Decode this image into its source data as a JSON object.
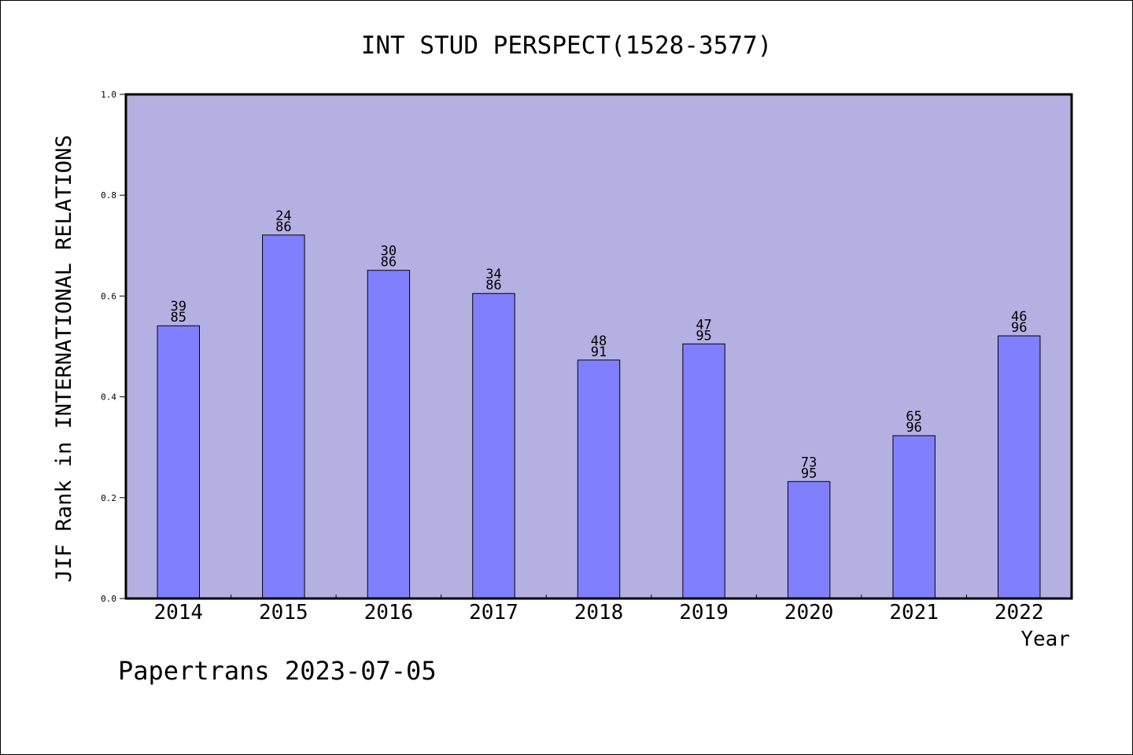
{
  "chart_data": {
    "type": "bar",
    "title": "INT STUD PERSPECT(1528-3577)",
    "xlabel": "Year",
    "ylabel": "JIF Rank in INTERNATIONAL RELATIONS",
    "ylim": [
      0,
      1.0
    ],
    "yticks": [
      "0.0",
      "0.2",
      "0.4",
      "0.6",
      "0.8",
      "1.0"
    ],
    "categories": [
      "2014",
      "2015",
      "2016",
      "2017",
      "2018",
      "2019",
      "2020",
      "2021",
      "2022"
    ],
    "values": [
      0.541,
      0.721,
      0.651,
      0.605,
      0.473,
      0.505,
      0.232,
      0.323,
      0.521
    ],
    "bar_labels": [
      [
        "39",
        "85"
      ],
      [
        "24",
        "86"
      ],
      [
        "30",
        "86"
      ],
      [
        "34",
        "86"
      ],
      [
        "48",
        "91"
      ],
      [
        "47",
        "95"
      ],
      [
        "73",
        "95"
      ],
      [
        "65",
        "96"
      ],
      [
        "46",
        "96"
      ]
    ],
    "grid": false,
    "legend": "none",
    "colors": {
      "plot_background": "#b5b0e2",
      "bar_fill": "#8080ff",
      "bar_stroke": "#000000",
      "axis": "#000000",
      "text": "#000000"
    }
  },
  "footer": {
    "credit": "Papertrans 2023-07-05"
  }
}
